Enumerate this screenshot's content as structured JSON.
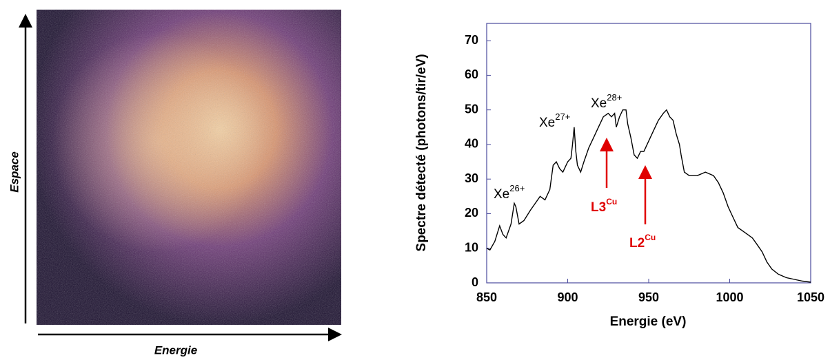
{
  "image": {
    "x_label": "Energie",
    "y_label": "Espace"
  },
  "chart_data": {
    "type": "line",
    "x_label": "Energie (eV)",
    "y_label": "Spectre détecté (photons/tir/eV)",
    "annotations": [
      {
        "text": "Xe",
        "sup": "26+"
      },
      {
        "text": "Xe",
        "sup": "27+"
      },
      {
        "text": "Xe",
        "sup": "28+"
      },
      {
        "text": "L3",
        "sup": "Cu"
      },
      {
        "text": "L2",
        "sup": "Cu"
      }
    ],
    "xlim": [
      850,
      1050
    ],
    "xticks": [
      850,
      900,
      950,
      1000,
      1050
    ],
    "ylim": [
      0,
      75
    ],
    "yticks": [
      0,
      10,
      20,
      30,
      40,
      50,
      60,
      70
    ],
    "series": [
      {
        "color": "#000000",
        "x": [
          850,
          852,
          855,
          858,
          860,
          862,
          865,
          867,
          868,
          870,
          873,
          877,
          880,
          883,
          886,
          889,
          891,
          893,
          895,
          897,
          900,
          902,
          903,
          904,
          905,
          906,
          908,
          910,
          913,
          916,
          919,
          922,
          925,
          927,
          929,
          930,
          932,
          934,
          936,
          937,
          939,
          941,
          943,
          945,
          947,
          950,
          953,
          956,
          959,
          961,
          963,
          965,
          967,
          969,
          970,
          972,
          975,
          980,
          985,
          990,
          993,
          996,
          999,
          1002,
          1005,
          1008,
          1011,
          1014,
          1017,
          1020,
          1023,
          1026,
          1030,
          1035,
          1040,
          1045,
          1050
        ],
        "values": [
          10,
          9.5,
          12,
          16.5,
          14,
          13,
          17,
          23,
          22,
          17,
          18,
          21,
          23,
          25,
          24,
          27,
          34,
          35,
          33,
          32,
          35,
          36,
          40,
          45,
          38,
          34,
          32,
          35,
          39,
          42,
          45,
          48,
          49,
          48,
          49,
          45,
          48,
          50,
          50,
          46,
          42,
          37,
          36,
          38,
          38,
          41,
          44,
          47,
          49,
          50,
          48,
          47,
          43,
          40,
          37,
          32,
          31,
          31,
          32,
          31,
          29,
          26,
          22,
          19,
          16,
          15,
          14,
          13,
          11,
          9,
          6,
          4,
          2.5,
          1.5,
          1,
          0.5,
          0.2
        ]
      }
    ]
  }
}
